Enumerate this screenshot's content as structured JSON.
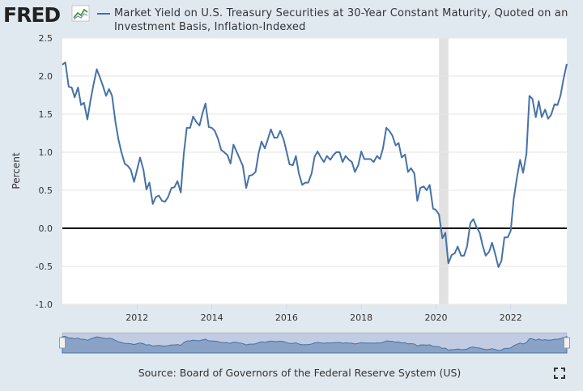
{
  "brand": "FRED",
  "chart_data": {
    "type": "line",
    "series": [
      {
        "name": "Market Yield on U.S. Treasury Securities at 30-Year Constant Maturity, Quoted on an Investment Basis, Inflation-Indexed",
        "color": "#4572a7",
        "values": [
          2.15,
          2.18,
          1.86,
          1.85,
          1.72,
          1.85,
          1.62,
          1.65,
          1.43,
          1.67,
          1.88,
          2.09,
          1.99,
          1.88,
          1.74,
          1.83,
          1.74,
          1.4,
          1.17,
          1.0,
          0.85,
          0.82,
          0.77,
          0.61,
          0.77,
          0.93,
          0.77,
          0.51,
          0.6,
          0.32,
          0.41,
          0.43,
          0.36,
          0.35,
          0.41,
          0.53,
          0.54,
          0.62,
          0.47,
          0.98,
          1.32,
          1.32,
          1.47,
          1.4,
          1.35,
          1.51,
          1.64,
          1.33,
          1.32,
          1.28,
          1.17,
          1.03,
          1.0,
          0.96,
          0.85,
          1.1,
          1.0,
          0.91,
          0.82,
          0.53,
          0.69,
          0.7,
          0.74,
          0.98,
          1.14,
          1.05,
          1.17,
          1.3,
          1.19,
          1.19,
          1.28,
          1.17,
          1.01,
          0.84,
          0.83,
          0.95,
          0.72,
          0.57,
          0.6,
          0.6,
          0.72,
          0.94,
          1.01,
          0.93,
          0.87,
          0.95,
          0.9,
          0.96,
          1.0,
          1.0,
          0.87,
          0.95,
          0.9,
          0.87,
          0.74,
          0.83,
          1.01,
          0.91,
          0.91,
          0.91,
          0.87,
          0.95,
          0.91,
          1.05,
          1.32,
          1.28,
          1.22,
          1.09,
          1.12,
          0.93,
          0.97,
          0.74,
          0.79,
          0.72,
          0.36,
          0.53,
          0.55,
          0.5,
          0.57,
          0.26,
          0.24,
          0.18,
          -0.13,
          -0.06,
          -0.46,
          -0.35,
          -0.33,
          -0.24,
          -0.36,
          -0.36,
          -0.24,
          0.07,
          0.12,
          0.02,
          -0.06,
          -0.23,
          -0.36,
          -0.31,
          -0.19,
          -0.33,
          -0.51,
          -0.43,
          -0.12,
          -0.12,
          -0.03,
          0.39,
          0.68,
          0.9,
          0.73,
          0.98,
          1.74,
          1.7,
          1.46,
          1.67,
          1.46,
          1.56,
          1.44,
          1.49,
          1.63,
          1.62,
          1.74,
          1.98,
          2.16
        ]
      }
    ],
    "x": [
      2010.0,
      2010.08,
      2010.17,
      2010.25,
      2010.33,
      2010.42,
      2010.5,
      2010.58,
      2010.67,
      2010.75,
      2010.83,
      2010.92,
      2011.0,
      2011.08,
      2011.17,
      2011.25,
      2011.33,
      2011.42,
      2011.5,
      2011.58,
      2011.67,
      2011.75,
      2011.83,
      2011.92,
      2012.0,
      2012.08,
      2012.17,
      2012.25,
      2012.33,
      2012.42,
      2012.5,
      2012.58,
      2012.67,
      2012.75,
      2012.83,
      2012.92,
      2013.0,
      2013.08,
      2013.17,
      2013.25,
      2013.33,
      2013.42,
      2013.5,
      2013.58,
      2013.67,
      2013.75,
      2013.83,
      2013.92,
      2014.0,
      2014.08,
      2014.17,
      2014.25,
      2014.33,
      2014.42,
      2014.5,
      2014.58,
      2014.67,
      2014.75,
      2014.83,
      2014.92,
      2015.0,
      2015.08,
      2015.17,
      2015.25,
      2015.33,
      2015.42,
      2015.5,
      2015.58,
      2015.67,
      2015.75,
      2015.83,
      2015.92,
      2016.0,
      2016.08,
      2016.17,
      2016.25,
      2016.33,
      2016.42,
      2016.5,
      2016.58,
      2016.67,
      2016.75,
      2016.83,
      2016.92,
      2017.0,
      2017.08,
      2017.17,
      2017.25,
      2017.33,
      2017.42,
      2017.5,
      2017.58,
      2017.67,
      2017.75,
      2017.83,
      2017.92,
      2018.0,
      2018.08,
      2018.17,
      2018.25,
      2018.33,
      2018.42,
      2018.5,
      2018.58,
      2018.67,
      2018.75,
      2018.83,
      2018.92,
      2019.0,
      2019.08,
      2019.17,
      2019.25,
      2019.33,
      2019.42,
      2019.5,
      2019.58,
      2019.67,
      2019.75,
      2019.83,
      2019.92,
      2020.0,
      2020.08,
      2020.17,
      2020.25,
      2020.33,
      2020.42,
      2020.5,
      2020.58,
      2020.67,
      2020.75,
      2020.83,
      2020.92,
      2021.0,
      2021.08,
      2021.17,
      2021.25,
      2021.33,
      2021.42,
      2021.5,
      2021.58,
      2021.67,
      2021.75,
      2021.83,
      2021.92,
      2022.0,
      2022.08,
      2022.17,
      2022.25,
      2022.33,
      2022.42,
      2022.5,
      2022.58,
      2022.67,
      2022.75,
      2022.83,
      2022.92,
      2023.0,
      2023.08,
      2023.17,
      2023.25,
      2023.33,
      2023.42,
      2023.5
    ],
    "xlim": [
      2010.0,
      2023.5
    ],
    "xticks": [
      2012,
      2014,
      2016,
      2018,
      2020,
      2022
    ],
    "ylim": [
      -1.0,
      2.5
    ],
    "yticks": [
      {
        "value": -1.0,
        "label": "-1.0"
      },
      -0.5,
      {
        "value": 0,
        "label": "0.0"
      },
      0.5,
      {
        "value": 1.0,
        "label": "1.0"
      },
      1.5,
      {
        "value": 2.0,
        "label": "2.0"
      },
      2.5
    ],
    "y_label": "Percent",
    "grid": true,
    "zero_line": true,
    "shaded_ranges": [
      [
        2020.08,
        2020.33
      ]
    ],
    "source": "Source: Board of Governors of the Federal Reserve System (US)"
  }
}
